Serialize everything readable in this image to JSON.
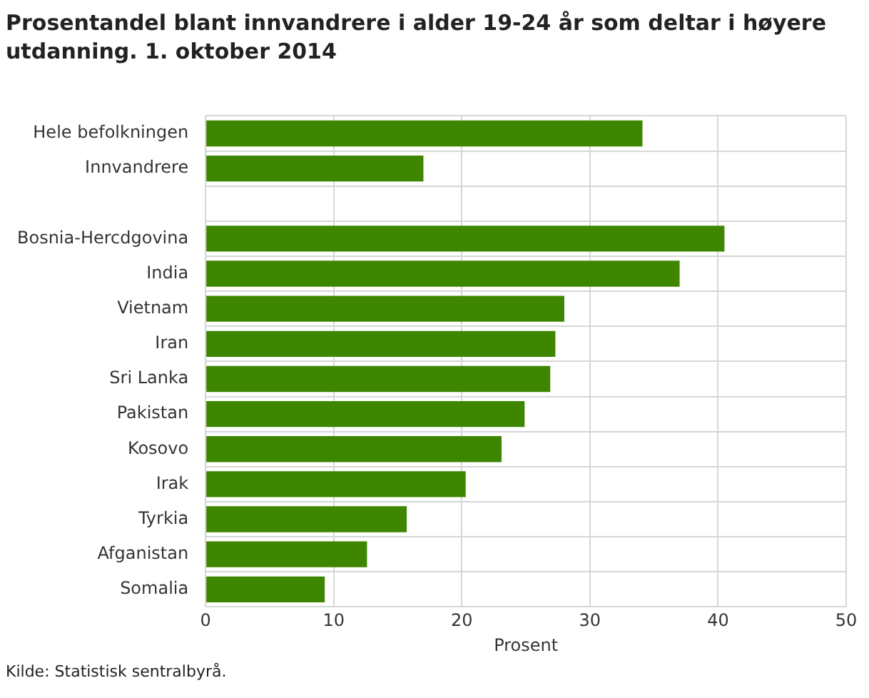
{
  "chart_data": {
    "type": "bar",
    "orientation": "horizontal",
    "title": "Prosentandel blant innvandrere i alder 19-24 år som deltar i høyere utdanning. 1. oktober 2014",
    "xlabel": "Prosent",
    "categories": [
      "Hele befolkningen",
      "Innvandrere",
      null,
      "Bosnia-Hercdgovina",
      "India",
      "Vietnam",
      "Iran",
      "Sri Lanka",
      "Pakistan",
      "Kosovo",
      "Irak",
      "Tyrkia",
      "Afganistan",
      "Somalia"
    ],
    "values": [
      34.1,
      17.0,
      null,
      40.5,
      37.0,
      28.0,
      27.3,
      26.9,
      24.9,
      23.1,
      20.3,
      15.7,
      12.6,
      9.3
    ],
    "color": "#3f8600",
    "xlim": [
      0,
      50
    ],
    "xticks": [
      0,
      10,
      20,
      30,
      40,
      50
    ],
    "grid": true,
    "legend": false,
    "annotations": [
      "Kilde: Statistisk sentralbyrå."
    ]
  }
}
